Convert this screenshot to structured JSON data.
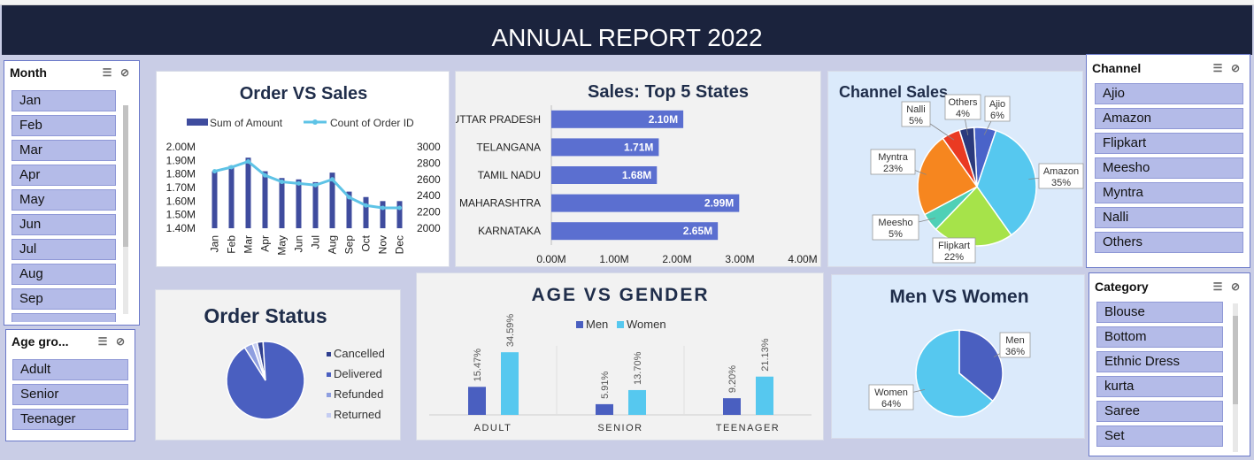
{
  "banner": {
    "title": "ANNUAL REPORT 2022"
  },
  "slicers": {
    "month": {
      "title": "Month",
      "items": [
        "Jan",
        "Feb",
        "Mar",
        "Apr",
        "May",
        "Jun",
        "Jul",
        "Aug",
        "Sep"
      ]
    },
    "age_group": {
      "title": "Age gro...",
      "items": [
        "Adult",
        "Senior",
        "Teenager"
      ]
    },
    "channel": {
      "title": "Channel",
      "items": [
        "Ajio",
        "Amazon",
        "Flipkart",
        "Meesho",
        "Myntra",
        "Nalli",
        "Others"
      ]
    },
    "category": {
      "title": "Category",
      "items": [
        "Blouse",
        "Bottom",
        "Ethnic Dress",
        "kurta",
        "Saree",
        "Set"
      ]
    }
  },
  "icons": {
    "multiselect": "multi-select-icon",
    "clear_filter": "clear-filter-icon"
  },
  "colors": {
    "navy": "#1b233d",
    "bar_dark": "#3f4c9e",
    "line_blue": "#5ec3e6",
    "bar_mid": "#5b6fd0",
    "cyan": "#56c8ef"
  },
  "chart_data": [
    {
      "id": "order_vs_sales",
      "type": "bar",
      "title": "Order VS Sales",
      "categories": [
        "Jan",
        "Feb",
        "Mar",
        "Apr",
        "May",
        "Jun",
        "Jul",
        "Aug",
        "Sep",
        "Oct",
        "Nov",
        "Dec"
      ],
      "series": [
        {
          "name": "Sum of Amount",
          "kind": "bar",
          "axis": "left",
          "values": [
            1.82,
            1.86,
            1.92,
            1.82,
            1.77,
            1.76,
            1.74,
            1.81,
            1.67,
            1.63,
            1.6,
            1.6
          ]
        },
        {
          "name": "Count of Order ID",
          "kind": "line",
          "axis": "right",
          "values": [
            2700,
            2750,
            2820,
            2650,
            2570,
            2550,
            2530,
            2600,
            2380,
            2280,
            2250,
            2250
          ]
        }
      ],
      "yticks_left": [
        "2.00M",
        "1.90M",
        "1.80M",
        "1.70M",
        "1.60M",
        "1.50M",
        "1.40M"
      ],
      "ylim_left": [
        1.4,
        2.0
      ],
      "yticks_right": [
        "3000",
        "2800",
        "2600",
        "2400",
        "2200",
        "2000"
      ],
      "ylim_right": [
        2000,
        3000
      ]
    },
    {
      "id": "top5_states",
      "type": "bar",
      "orientation": "horizontal",
      "title": "Sales: Top 5 States",
      "categories": [
        "UTTAR PRADESH",
        "TELANGANA",
        "TAMIL NADU",
        "MAHARASHTRA",
        "KARNATAKA"
      ],
      "values": [
        2.1,
        1.71,
        1.68,
        2.99,
        2.65
      ],
      "labels": [
        "2.10M",
        "1.71M",
        "1.68M",
        "2.99M",
        "2.65M"
      ],
      "xticks": [
        "0.00M",
        "1.00M",
        "2.00M",
        "3.00M",
        "4.00M"
      ],
      "xlim": [
        0,
        4
      ]
    },
    {
      "id": "channel_sales",
      "type": "pie",
      "title": "Channel Sales",
      "slices": [
        {
          "name": "Ajio",
          "value": 6,
          "label": "6%",
          "color": "#4a63c9"
        },
        {
          "name": "Amazon",
          "value": 35,
          "label": "35%",
          "color": "#56c8ef"
        },
        {
          "name": "Flipkart",
          "value": 22,
          "label": "22%",
          "color": "#a6e34a"
        },
        {
          "name": "Meesho",
          "value": 5,
          "label": "5%",
          "color": "#4fd0b6"
        },
        {
          "name": "Myntra",
          "value": 23,
          "label": "23%",
          "color": "#f6861f"
        },
        {
          "name": "Nalli",
          "value": 5,
          "label": "5%",
          "color": "#ea3a22"
        },
        {
          "name": "Others",
          "value": 4,
          "label": "4%",
          "color": "#2b3a7d"
        }
      ]
    },
    {
      "id": "order_status",
      "type": "pie",
      "title": "Order Status",
      "slices": [
        {
          "name": "Cancelled",
          "value": 2.5,
          "color": "#2f3f8f"
        },
        {
          "name": "Delivered",
          "value": 92.0,
          "color": "#4a5fc0"
        },
        {
          "name": "Refunded",
          "value": 3.5,
          "color": "#8f9fe0"
        },
        {
          "name": "Returned",
          "value": 2.0,
          "color": "#c5cdf2"
        }
      ]
    },
    {
      "id": "age_vs_gender",
      "type": "bar",
      "title": "AGE VS GENDER",
      "categories": [
        "ADULT",
        "SENIOR",
        "TEENAGER"
      ],
      "series": [
        {
          "name": "Men",
          "values": [
            15.47,
            5.91,
            9.2
          ],
          "labels": [
            "15.47%",
            "5.91%",
            "9.20%"
          ],
          "color": "#4a5fc0"
        },
        {
          "name": "Women",
          "values": [
            34.59,
            13.7,
            21.13
          ],
          "labels": [
            "34.59%",
            "13.70%",
            "21.13%"
          ],
          "color": "#56c8ef"
        }
      ]
    },
    {
      "id": "men_vs_women",
      "type": "pie",
      "title": "Men VS Women",
      "slices": [
        {
          "name": "Men",
          "value": 36,
          "label": "36%",
          "color": "#4a5fc0"
        },
        {
          "name": "Women",
          "value": 64,
          "label": "64%",
          "color": "#56c8ef"
        }
      ]
    }
  ]
}
